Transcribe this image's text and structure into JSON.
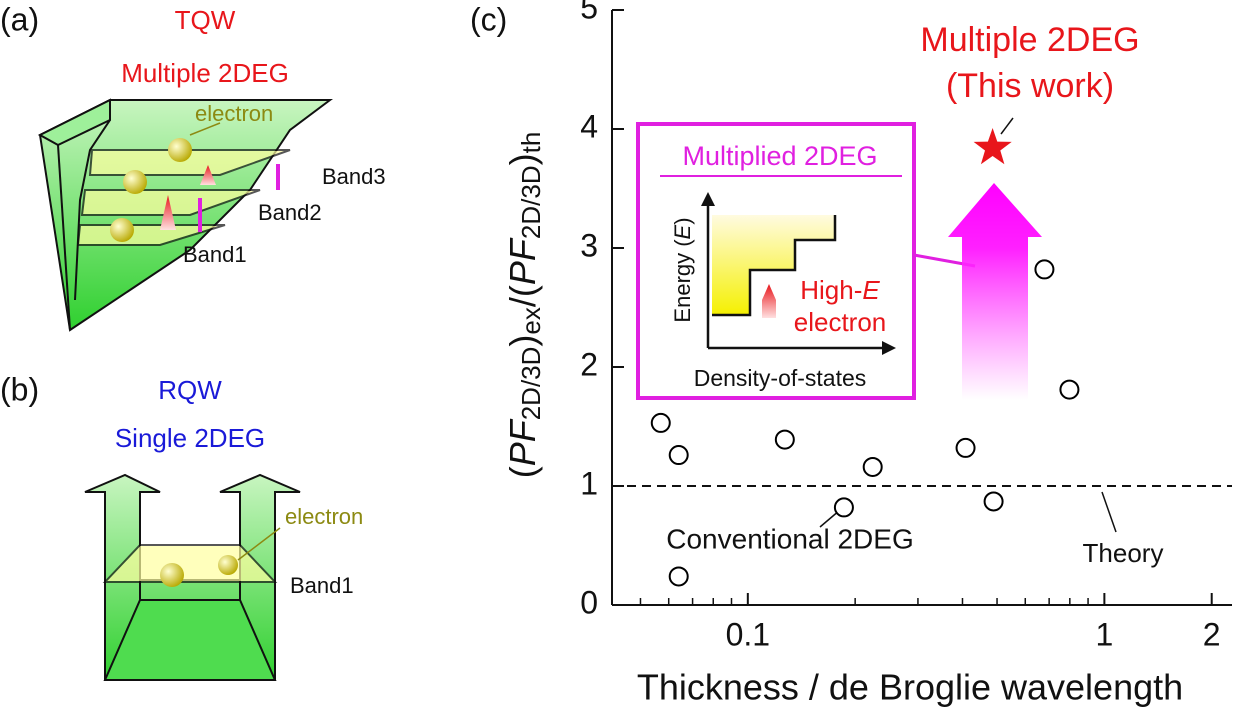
{
  "panels": {
    "a": {
      "tag": "(a)",
      "title": "TQW",
      "subtitle": "Multiple 2DEG",
      "particle": "electron",
      "bands": [
        "Band3",
        "Band2",
        "Band1"
      ]
    },
    "b": {
      "tag": "(b)",
      "title": "RQW",
      "subtitle": "Single 2DEG",
      "particle": "electron",
      "bands": [
        "Band1"
      ]
    }
  },
  "chart_data": {
    "type": "scatter",
    "tag": "(c)",
    "xlabel": "Thickness / de Broglie wavelength",
    "ylabel": [
      "(",
      "PF",
      "2D/3D",
      ")",
      "ex",
      "/(",
      "PF",
      "2D/3D",
      ")",
      "th"
    ],
    "xscale": "log",
    "xlim": [
      0.0416,
      2.28
    ],
    "ylim": [
      0,
      5
    ],
    "xticks": [
      0.1,
      1,
      2
    ],
    "xminorticks": [
      0.05,
      0.06,
      0.07,
      0.08,
      0.09,
      0.2,
      0.3,
      0.4,
      0.5,
      0.6,
      0.7,
      0.8,
      0.9
    ],
    "yticks": [
      0,
      1,
      2,
      3,
      4,
      5
    ],
    "x": [
      0.057,
      0.064,
      0.064,
      0.127,
      0.186,
      0.224,
      0.408,
      0.489,
      0.679,
      0.798
    ],
    "values": [
      1.53,
      1.26,
      0.24,
      1.39,
      0.82,
      1.16,
      1.32,
      0.87,
      2.82,
      1.81
    ],
    "marker_color": "#000000",
    "highlight": {
      "x": 0.486,
      "value": 3.84,
      "color": "#e8161b",
      "label": [
        "Multiple 2DEG",
        "(This work)"
      ]
    },
    "reference_line": {
      "value": 1,
      "label": "Theory"
    },
    "annotation": "Conventional 2DEG",
    "inset": {
      "title": "Multiplied 2DEG",
      "ylabel": [
        "Energy (",
        "E",
        ")"
      ],
      "label": [
        "High-",
        "E",
        "electron"
      ],
      "xlabel": "Density-of-states"
    }
  }
}
